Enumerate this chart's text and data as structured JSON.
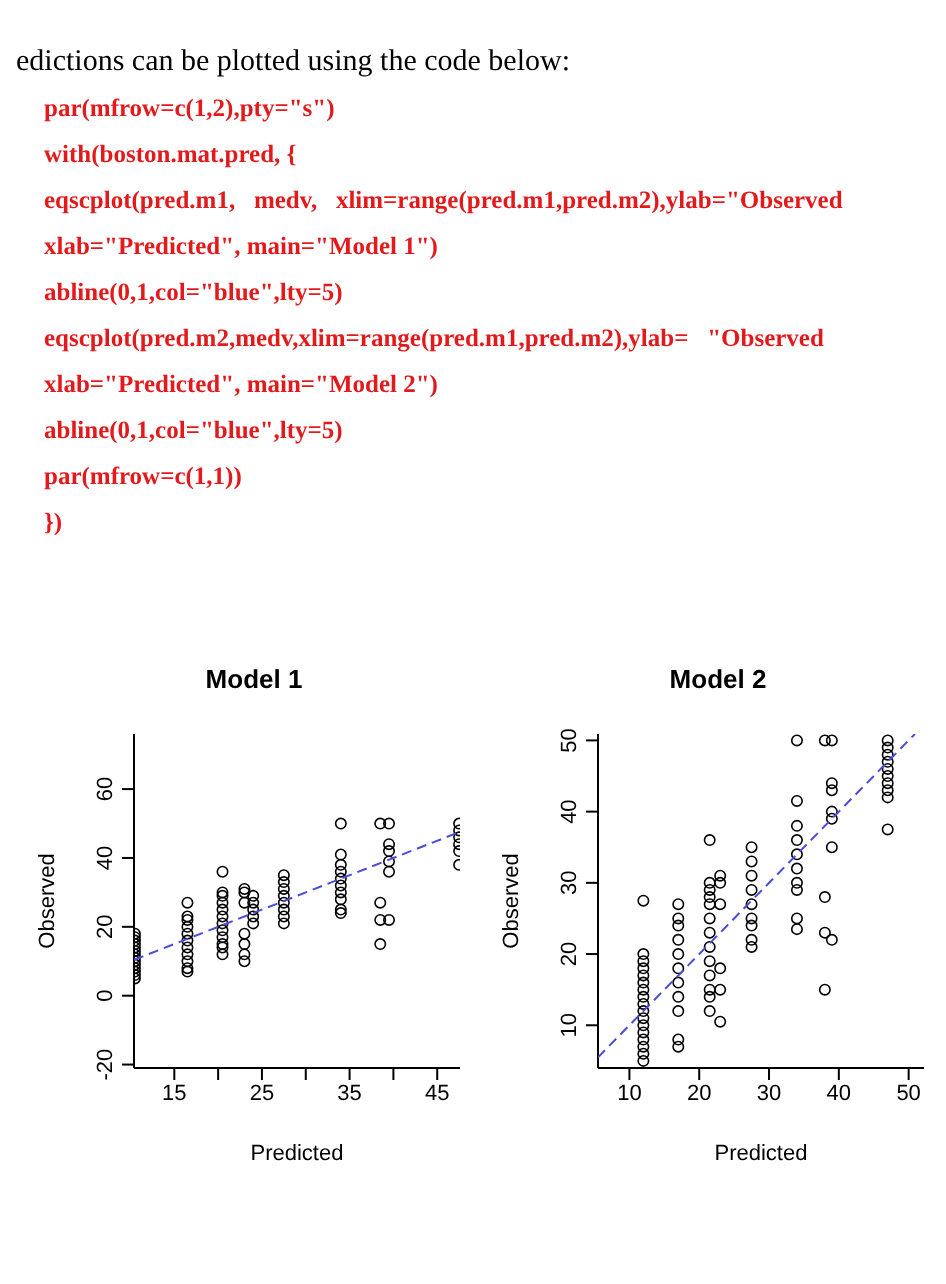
{
  "chart_data": [
    {
      "type": "other",
      "annotations": [
        "edictions can be plotted using the code below:",
        "par(mfrow=c(1,2),pty=\"s\")",
        "with(boston.mat.pred, {",
        "eqscplot(pred.m1,   medv,   xlim=range(pred.m1,pred.m2),ylab=\"Observed",
        "xlab=\"Predicted\", main=\"Model 1\")",
        "abline(0,1,col=\"blue\",lty=5)",
        "eqscplot(pred.m2,medv,xlim=range(pred.m1,pred.m2),ylab=   \"Observed",
        "xlab=\"Predicted\", main=\"Model 2\")",
        "abline(0,1,col=\"blue\",lty=5)",
        "par(mfrow=c(1,1))",
        "})"
      ]
    },
    {
      "type": "scatter",
      "title": "Model 1",
      "xlabel": "Predicted",
      "ylabel": "Observed",
      "xlim": [
        10.4,
        47.6
      ],
      "ylim": [
        -21,
        76
      ],
      "xticks": [
        15,
        {
          "value": 20,
          "label": null
        },
        25,
        {
          "value": 30,
          "label": null
        },
        35,
        {
          "value": 40,
          "label": null
        },
        45
      ],
      "yticks": [
        -20,
        0,
        20,
        40,
        60
      ],
      "marker": "circle",
      "series": [
        {
          "color": "#000000",
          "x": [
            10.5,
            10.5,
            10.5,
            10.5,
            10.5,
            10.5,
            10.5,
            10.5,
            10.5,
            10.5,
            10.5,
            10.5,
            10.5,
            10.5,
            16.5,
            16.5,
            16.5,
            16.5,
            16.5,
            16.5,
            16.5,
            16.5,
            16.5,
            16.5,
            16.5,
            20.5,
            20.5,
            20.5,
            20.5,
            20.5,
            20.5,
            20.5,
            20.5,
            20.5,
            20.5,
            20.5,
            20.5,
            23,
            23,
            23,
            23,
            23,
            23,
            23,
            24,
            24,
            24,
            24,
            24,
            27.5,
            27.5,
            27.5,
            27.5,
            27.5,
            27.5,
            27.5,
            27.5,
            34,
            34,
            34,
            34,
            34,
            34,
            34,
            34,
            34,
            34,
            38.5,
            38.5,
            38.5,
            38.5,
            39.5,
            39.5,
            39.5,
            39.5,
            39.5,
            39.5,
            47.5,
            47.5,
            47.5,
            47.5,
            47.5,
            47.5
          ],
          "values": [
            5,
            6,
            7,
            8,
            9,
            10,
            11,
            12,
            13,
            14,
            15,
            16,
            17,
            18,
            7,
            8,
            10,
            12,
            14,
            16,
            18,
            20,
            22,
            23,
            27,
            12,
            14,
            15,
            17,
            19,
            21,
            23,
            25,
            27,
            29,
            30,
            36,
            10,
            12,
            15,
            18,
            27,
            30,
            31,
            21,
            23,
            25,
            27,
            29,
            21,
            23,
            25,
            27,
            29,
            31,
            33,
            35,
            24,
            25,
            28,
            30,
            32,
            34,
            36,
            38,
            41,
            50,
            15,
            22,
            27,
            50,
            22,
            36,
            39,
            42,
            44,
            50,
            38,
            42,
            44,
            46,
            48,
            50
          ]
        },
        {
          "type": "line",
          "color": "#4b4bdc",
          "line_style": "dashed",
          "marker": "none",
          "x": [
            10.4,
            47.6
          ],
          "values": [
            10.4,
            47.6
          ]
        }
      ]
    },
    {
      "type": "scatter",
      "title": "Model 2",
      "xlabel": "Predicted",
      "ylabel": "Observed",
      "xlim": [
        5.5,
        52.2
      ],
      "ylim": [
        4,
        50.9
      ],
      "xticks": [
        10,
        20,
        30,
        40,
        50
      ],
      "yticks": [
        10,
        20,
        30,
        40,
        50
      ],
      "marker": "circle",
      "series": [
        {
          "color": "#000000",
          "x": [
            12,
            12,
            12,
            12,
            12,
            12,
            12,
            12,
            12,
            12,
            12,
            12,
            12,
            12,
            12,
            12,
            12,
            17,
            17,
            17,
            17,
            17,
            17,
            17,
            17,
            17,
            17,
            17,
            21.5,
            21.5,
            21.5,
            21.5,
            21.5,
            21.5,
            21.5,
            21.5,
            21.5,
            21.5,
            21.5,
            21.5,
            21.5,
            23,
            23,
            23,
            23,
            23,
            23,
            27.5,
            27.5,
            27.5,
            27.5,
            27.5,
            27.5,
            27.5,
            27.5,
            27.5,
            34,
            34,
            34,
            34,
            34,
            34,
            34,
            34,
            34,
            34,
            38,
            38,
            38,
            38,
            39,
            39,
            39,
            39,
            39,
            39,
            39,
            47,
            47,
            47,
            47,
            47,
            47,
            47,
            47,
            47,
            47
          ],
          "values": [
            5,
            6,
            7,
            8,
            9,
            10,
            11,
            12,
            13,
            14,
            15,
            16,
            17,
            18,
            19,
            20,
            27.5,
            7,
            8,
            12,
            14,
            16,
            18,
            20,
            22,
            24,
            25,
            27,
            12,
            14,
            15,
            17,
            19,
            21,
            23,
            25,
            27,
            28,
            29,
            30,
            36,
            10.5,
            15,
            18,
            27,
            30,
            31,
            21,
            22,
            24,
            25,
            27,
            29,
            31,
            33,
            35,
            23.5,
            25,
            29,
            30,
            32,
            34,
            36,
            38,
            41.5,
            50,
            15,
            23,
            28,
            50,
            22,
            35,
            39,
            40,
            43,
            44,
            50,
            37.5,
            42,
            43,
            44,
            45,
            46,
            47,
            48,
            49,
            50
          ]
        },
        {
          "type": "line",
          "color": "#4b4bdc",
          "line_style": "dashed",
          "marker": "none",
          "x": [
            5.5,
            50.9
          ],
          "values": [
            5.5,
            50.9
          ]
        }
      ]
    }
  ]
}
